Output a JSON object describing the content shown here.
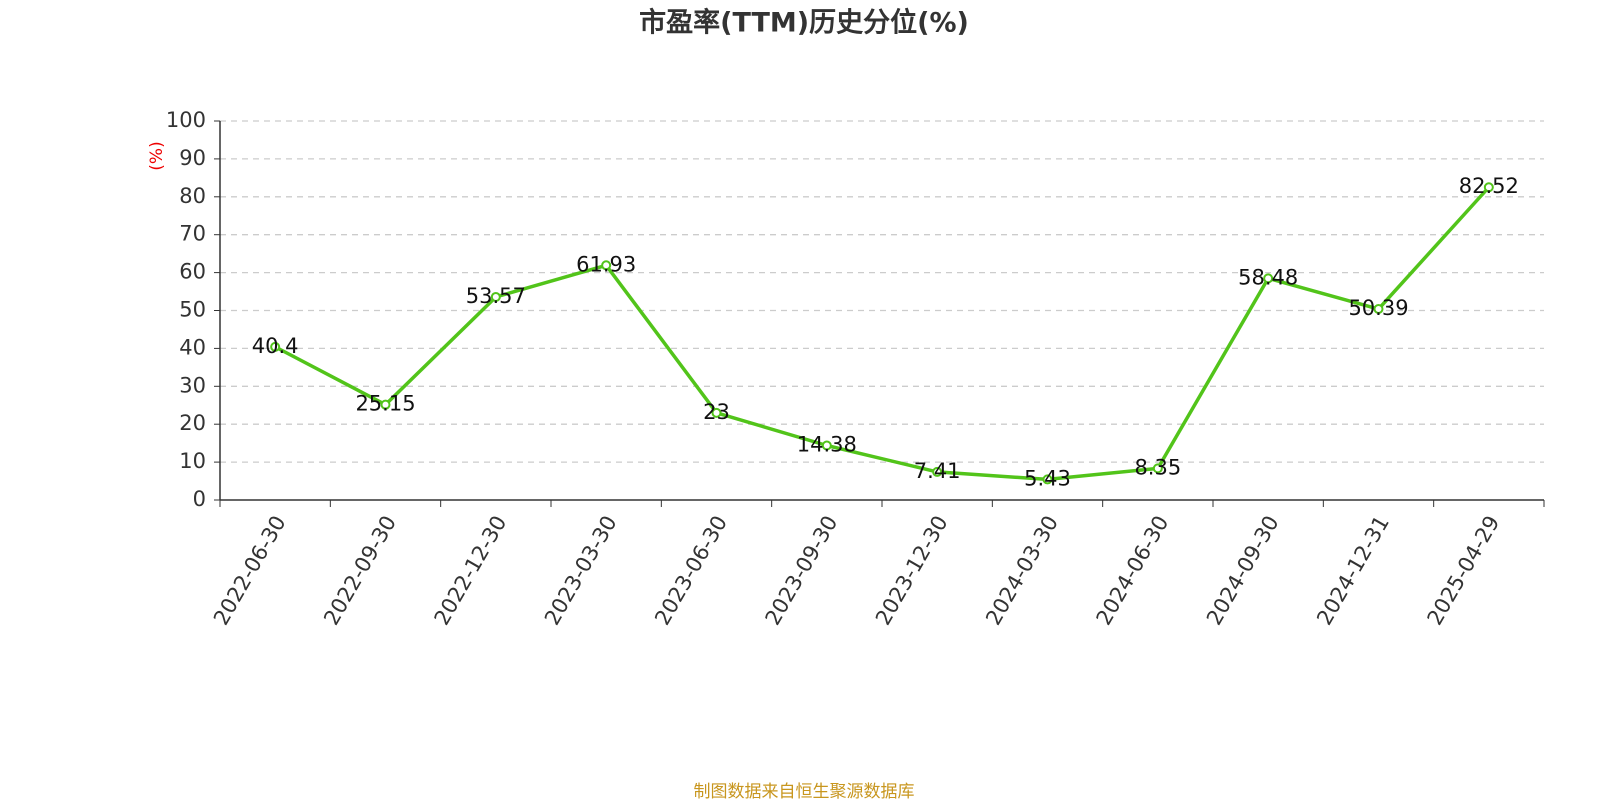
{
  "chart_data": {
    "type": "line",
    "title": "市盈率(TTM)历史分位(%)",
    "y_label": "(%)",
    "source": "制图数据来自恒生聚源数据库",
    "categories": [
      "2022-06-30",
      "2022-09-30",
      "2022-12-30",
      "2023-03-30",
      "2023-06-30",
      "2023-09-30",
      "2023-12-30",
      "2024-03-30",
      "2024-06-30",
      "2024-09-30",
      "2024-12-31",
      "2025-04-29"
    ],
    "values": [
      40.4,
      25.15,
      53.57,
      61.93,
      23,
      14.38,
      7.41,
      5.43,
      8.35,
      58.48,
      50.39,
      82.52
    ],
    "color": "#52c41a",
    "ylim": [
      0,
      100
    ],
    "yticks": [
      0,
      10,
      20,
      30,
      40,
      50,
      60,
      70,
      80,
      90,
      100
    ],
    "grid": true
  }
}
